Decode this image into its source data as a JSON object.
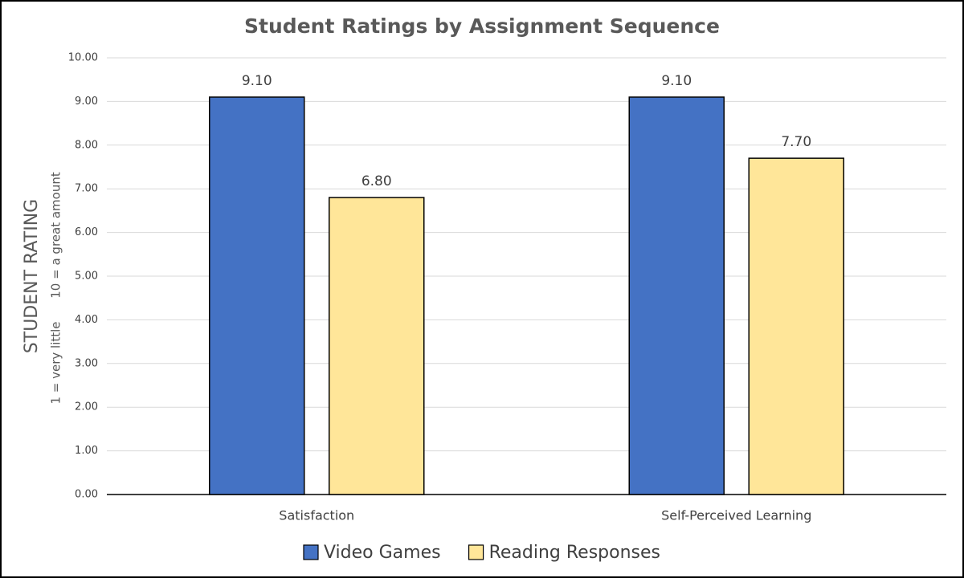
{
  "chart_data": {
    "type": "bar",
    "title": "Student Ratings by Assignment Sequence",
    "ylabel": "STUDENT RATING",
    "ylabel_low": "1 = very little",
    "ylabel_high": "10 = a great amount",
    "categories": [
      "Satisfaction",
      "Self-Perceived Learning"
    ],
    "series": [
      {
        "name": "Video Games",
        "color": "#4472c4",
        "values": [
          9.1,
          9.1
        ],
        "value_labels": [
          "9.10",
          "9.10"
        ]
      },
      {
        "name": "Reading Responses",
        "color": "#ffe699",
        "values": [
          6.8,
          7.7
        ],
        "value_labels": [
          "6.80",
          "7.70"
        ]
      }
    ],
    "ylim": [
      0,
      10
    ],
    "yticks": [
      {
        "value": 0,
        "label": "0.00"
      },
      {
        "value": 1,
        "label": "1.00"
      },
      {
        "value": 2,
        "label": "2.00"
      },
      {
        "value": 3,
        "label": "3.00"
      },
      {
        "value": 4,
        "label": "4.00"
      },
      {
        "value": 5,
        "label": "5.00"
      },
      {
        "value": 6,
        "label": "6.00"
      },
      {
        "value": 7,
        "label": "7.00"
      },
      {
        "value": 8,
        "label": "8.00"
      },
      {
        "value": 9,
        "label": "9.00"
      },
      {
        "value": 10,
        "label": "10.00"
      }
    ],
    "grid": true,
    "legend": "bottom"
  }
}
